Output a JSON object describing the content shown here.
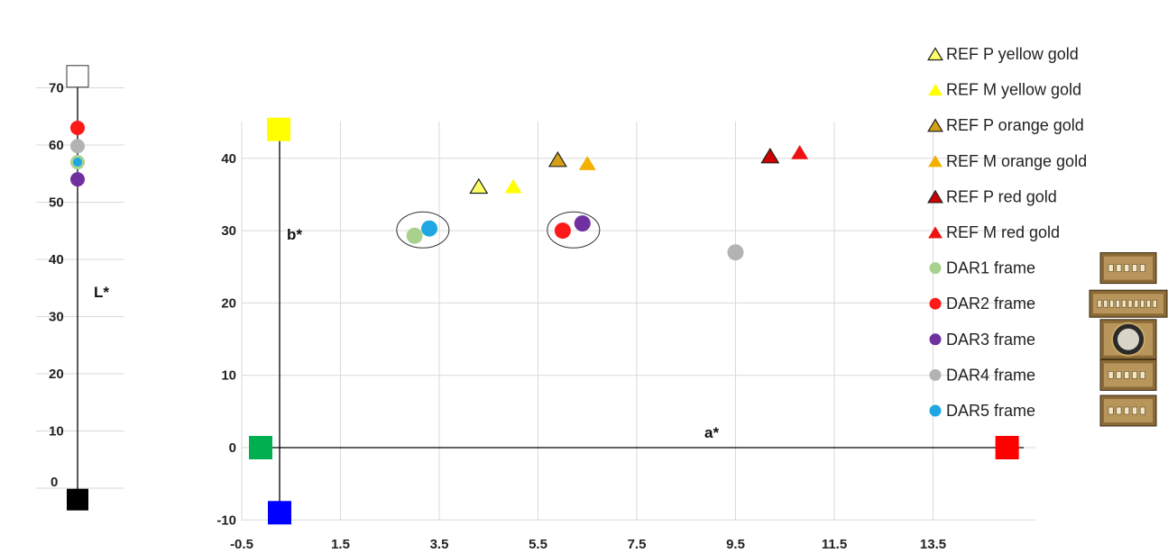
{
  "chart_data": [
    {
      "type": "scatter",
      "title": "",
      "ylabel": "L*",
      "ylim": [
        -5,
        78
      ],
      "yticks": [
        "0",
        "10",
        "20",
        "30",
        "40",
        "50",
        "60",
        "70"
      ],
      "points": [
        {
          "series": "white",
          "y": 72,
          "color": "#ffffff",
          "marker": "square"
        },
        {
          "series": "DAR2 frame",
          "y": 63,
          "color": "#ff1a1a",
          "marker": "circle"
        },
        {
          "series": "DAR4 frame",
          "y": 59.8,
          "color": "#b3b3b3",
          "marker": "circle"
        },
        {
          "series": "DAR1 frame",
          "y": 57,
          "color": "#a9d18e",
          "marker": "circle"
        },
        {
          "series": "DAR5 frame",
          "y": 57,
          "color": "#1ea7e1",
          "marker": "circle"
        },
        {
          "series": "DAR3 frame",
          "y": 54,
          "color": "#7030a0",
          "marker": "circle"
        },
        {
          "series": "black",
          "y": -2,
          "color": "#000000",
          "marker": "square"
        }
      ]
    },
    {
      "type": "scatter",
      "title": "",
      "xlabel": "a*",
      "ylabel": "b*",
      "xlim": [
        -0.5,
        15.5
      ],
      "ylim": [
        -10,
        45
      ],
      "xticks": [
        "-0.5",
        "1.5",
        "3.5",
        "5.5",
        "7.5",
        "9.5",
        "11.5",
        "13.5"
      ],
      "yticks": [
        "-10",
        "0",
        "10",
        "20",
        "30",
        "40"
      ],
      "series": [
        {
          "name": "REF P yellow gold",
          "marker": "triangle-outline",
          "color": "#ffff66",
          "points": [
            [
              4.3,
              36
            ]
          ]
        },
        {
          "name": "REF M yellow gold",
          "marker": "triangle",
          "color": "#ffff00",
          "points": [
            [
              5.0,
              36
            ]
          ]
        },
        {
          "name": "REF P orange gold",
          "marker": "triangle-outline",
          "color": "#d4a017",
          "points": [
            [
              5.9,
              39.7
            ]
          ]
        },
        {
          "name": "REF M orange gold",
          "marker": "triangle",
          "color": "#f4b000",
          "points": [
            [
              6.5,
              39.2
            ]
          ]
        },
        {
          "name": "REF P red gold",
          "marker": "triangle-outline",
          "color": "#cc0000",
          "points": [
            [
              10.2,
              40.2
            ]
          ]
        },
        {
          "name": "REF M red gold",
          "marker": "triangle",
          "color": "#ee1111",
          "points": [
            [
              10.8,
              40.7
            ]
          ]
        },
        {
          "name": "DAR1 frame",
          "marker": "circle",
          "color": "#a9d18e",
          "points": [
            [
              3.0,
              29.3
            ]
          ],
          "thumb": "plaque"
        },
        {
          "name": "DAR2 frame",
          "marker": "circle",
          "color": "#ff1a1a",
          "points": [
            [
              6.0,
              30
            ]
          ],
          "thumb": "long-plaque"
        },
        {
          "name": "DAR3 frame",
          "marker": "circle",
          "color": "#7030a0",
          "points": [
            [
              6.4,
              31
            ]
          ],
          "thumb": "dial"
        },
        {
          "name": "DAR4 frame",
          "marker": "circle",
          "color": "#b3b3b3",
          "points": [
            [
              9.5,
              27
            ]
          ],
          "thumb": "plaque"
        },
        {
          "name": "DAR5 frame",
          "marker": "circle",
          "color": "#1ea7e1",
          "points": [
            [
              3.3,
              30.3
            ]
          ],
          "thumb": "plaque"
        }
      ],
      "reference_markers": [
        {
          "a": 0.0,
          "b": 44,
          "color": "#ffff00"
        },
        {
          "a": -0.2,
          "b": 0,
          "color": "#00b050"
        },
        {
          "a": 15.0,
          "b": 0,
          "color": "#ff0000"
        },
        {
          "a": 0.0,
          "b": -9,
          "color": "#0000ff"
        }
      ],
      "groupings": [
        [
          3.0,
          3.3
        ],
        [
          6.0,
          6.4
        ]
      ],
      "legend_position": "right"
    }
  ]
}
